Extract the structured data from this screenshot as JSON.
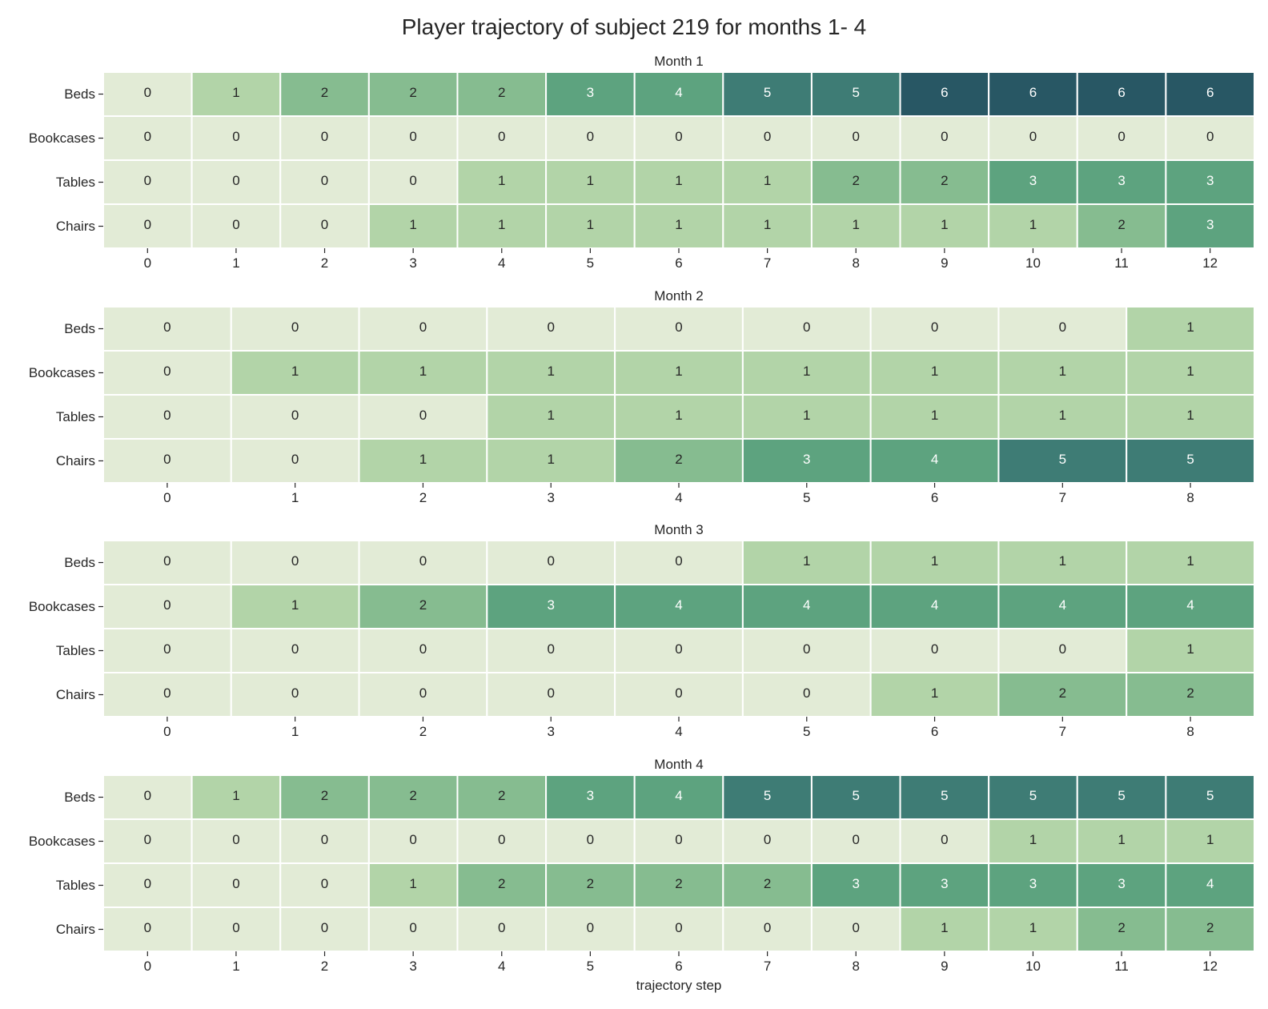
{
  "title": "Player trajectory of subject 219 for months 1- 4",
  "colors": {
    "scale": [
      "#e2ebd6",
      "#b2d4a8",
      "#86bc90",
      "#5da37f",
      "#3e7c75",
      "#285764"
    ],
    "text_dark": "#262626",
    "text_light": "#ffffff",
    "grid": "#ffffff"
  },
  "chart_data": [
    {
      "type": "heatmap",
      "title": "Month 1",
      "rows": [
        "Beds",
        "Bookcases",
        "Tables",
        "Chairs"
      ],
      "x": [
        0,
        1,
        2,
        3,
        4,
        5,
        6,
        7,
        8,
        9,
        10,
        11,
        12
      ],
      "values": [
        [
          0,
          1,
          2,
          2,
          2,
          3,
          4,
          5,
          5,
          6,
          6,
          6,
          6
        ],
        [
          0,
          0,
          0,
          0,
          0,
          0,
          0,
          0,
          0,
          0,
          0,
          0,
          0
        ],
        [
          0,
          0,
          0,
          0,
          1,
          1,
          1,
          1,
          2,
          2,
          3,
          3,
          3
        ],
        [
          0,
          0,
          0,
          1,
          1,
          1,
          1,
          1,
          1,
          1,
          1,
          2,
          3
        ]
      ],
      "xlabel": ""
    },
    {
      "type": "heatmap",
      "title": "Month 2",
      "rows": [
        "Beds",
        "Bookcases",
        "Tables",
        "Chairs"
      ],
      "x": [
        0,
        1,
        2,
        3,
        4,
        5,
        6,
        7,
        8
      ],
      "values": [
        [
          0,
          0,
          0,
          0,
          0,
          0,
          0,
          0,
          1
        ],
        [
          0,
          1,
          1,
          1,
          1,
          1,
          1,
          1,
          1
        ],
        [
          0,
          0,
          0,
          1,
          1,
          1,
          1,
          1,
          1
        ],
        [
          0,
          0,
          1,
          1,
          2,
          3,
          4,
          5,
          5
        ]
      ],
      "xlabel": ""
    },
    {
      "type": "heatmap",
      "title": "Month 3",
      "rows": [
        "Beds",
        "Bookcases",
        "Tables",
        "Chairs"
      ],
      "x": [
        0,
        1,
        2,
        3,
        4,
        5,
        6,
        7,
        8
      ],
      "values": [
        [
          0,
          0,
          0,
          0,
          0,
          1,
          1,
          1,
          1
        ],
        [
          0,
          1,
          2,
          3,
          4,
          4,
          4,
          4,
          4
        ],
        [
          0,
          0,
          0,
          0,
          0,
          0,
          0,
          0,
          1
        ],
        [
          0,
          0,
          0,
          0,
          0,
          0,
          1,
          2,
          2
        ]
      ],
      "xlabel": ""
    },
    {
      "type": "heatmap",
      "title": "Month 4",
      "rows": [
        "Beds",
        "Bookcases",
        "Tables",
        "Chairs"
      ],
      "x": [
        0,
        1,
        2,
        3,
        4,
        5,
        6,
        7,
        8,
        9,
        10,
        11,
        12
      ],
      "values": [
        [
          0,
          1,
          2,
          2,
          2,
          3,
          4,
          5,
          5,
          5,
          5,
          5,
          5
        ],
        [
          0,
          0,
          0,
          0,
          0,
          0,
          0,
          0,
          0,
          0,
          1,
          1,
          1
        ],
        [
          0,
          0,
          0,
          1,
          2,
          2,
          2,
          2,
          3,
          3,
          3,
          3,
          4
        ],
        [
          0,
          0,
          0,
          0,
          0,
          0,
          0,
          0,
          0,
          1,
          1,
          2,
          2
        ]
      ],
      "xlabel": "trajectory step"
    }
  ]
}
